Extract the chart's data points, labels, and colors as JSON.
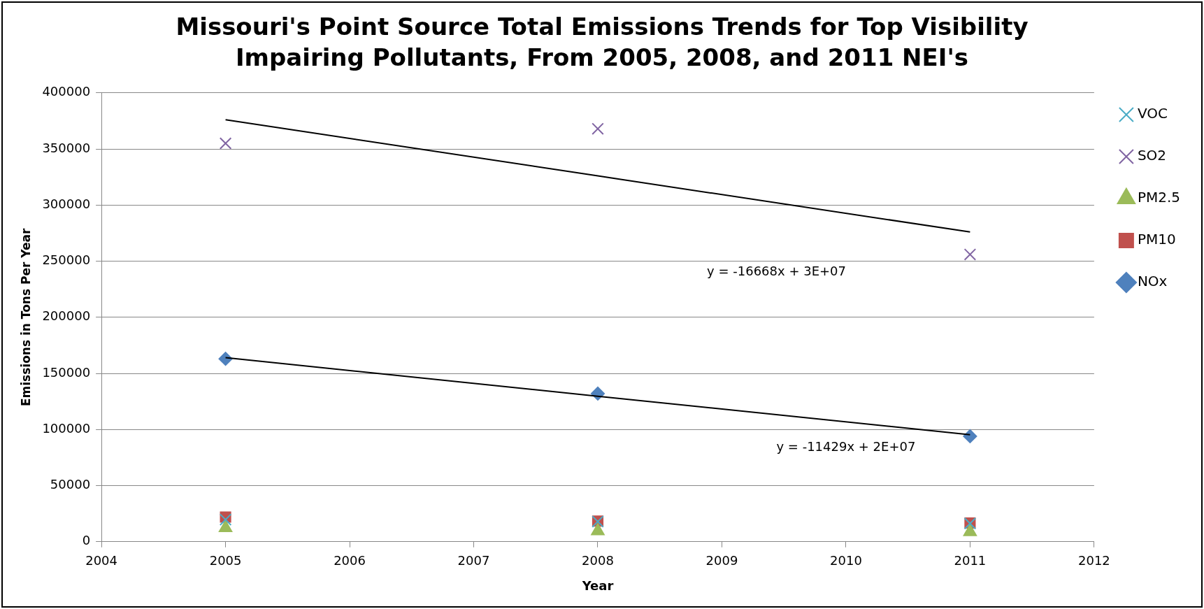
{
  "chart_data": {
    "type": "scatter",
    "title": "Missouri's Point Source Total Emissions Trends for Top Visibility Impairing Pollutants, From 2005, 2008, and 2011 NEI's",
    "xlabel": "Year",
    "ylabel": "Emissions in Tons Per Year",
    "x": [
      2005,
      2008,
      2011
    ],
    "series": [
      {
        "name": "NOx",
        "color": "#4f81bd",
        "marker": "diamond",
        "values": [
          163000,
          132000,
          94000
        ]
      },
      {
        "name": "PM10",
        "color": "#c0504d",
        "marker": "square",
        "values": [
          22000,
          18400,
          16700
        ]
      },
      {
        "name": "PM2.5",
        "color": "#9bbb59",
        "marker": "triangle",
        "values": [
          12300,
          9600,
          8800
        ]
      },
      {
        "name": "SO2",
        "color": "#8064a2",
        "marker": "cross",
        "values": [
          355000,
          368000,
          256000
        ]
      },
      {
        "name": "VOC",
        "color": "#4bacc6",
        "marker": "cross",
        "values": [
          19700,
          18000,
          16200
        ]
      },
      {
        "type": "line",
        "color": "#000000",
        "marker": "none",
        "values": [
          376000,
          326000,
          276000
        ]
      },
      {
        "type": "line",
        "color": "#000000",
        "marker": "none",
        "values": [
          164000,
          129700,
          95400
        ]
      }
    ],
    "annotations": [
      "y = -16668x + 3E+07",
      "y = -11429x + 2E+07"
    ],
    "xlim": [
      2004,
      2012
    ],
    "xticks": [
      2004,
      2005,
      2006,
      2007,
      2008,
      2009,
      2010,
      2011,
      2012
    ],
    "ylim": [
      0,
      400000
    ],
    "yticks": [
      0,
      50000,
      100000,
      150000,
      200000,
      250000,
      300000,
      350000,
      400000
    ],
    "grid": "y",
    "legend": "right"
  }
}
